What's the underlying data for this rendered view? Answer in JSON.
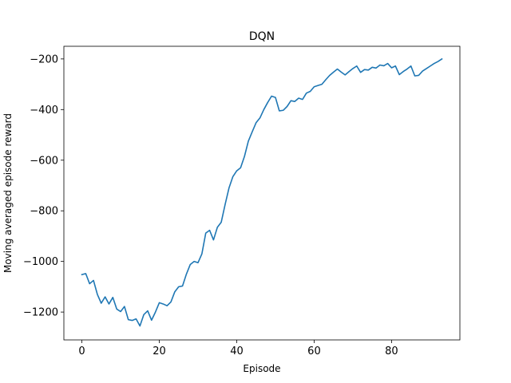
{
  "chart_data": {
    "type": "line",
    "title": "DQN",
    "xlabel": "Episode",
    "ylabel": "Moving averaged episode reward",
    "xlim": [
      -4.65,
      97.65
    ],
    "ylim": [
      -1310,
      -150
    ],
    "xticks": [
      0,
      20,
      40,
      60,
      80
    ],
    "yticks": [
      -1200,
      -1000,
      -800,
      -600,
      -400,
      -200
    ],
    "grid": false,
    "legend": "none",
    "series": [
      {
        "color": "#1f77b4",
        "x": [
          0,
          1,
          2,
          3,
          4,
          5,
          6,
          7,
          8,
          9,
          10,
          11,
          12,
          13,
          14,
          15,
          16,
          17,
          18,
          19,
          20,
          21,
          22,
          23,
          24,
          25,
          26,
          27,
          28,
          29,
          30,
          31,
          32,
          33,
          34,
          35,
          36,
          37,
          38,
          39,
          40,
          41,
          42,
          43,
          44,
          45,
          46,
          47,
          48,
          49,
          50,
          51,
          52,
          53,
          54,
          55,
          56,
          57,
          58,
          59,
          60,
          61,
          62,
          63,
          64,
          65,
          66,
          67,
          68,
          69,
          70,
          71,
          72,
          73,
          74,
          75,
          76,
          77,
          78,
          79,
          80,
          81,
          82,
          83,
          84,
          85,
          86,
          87,
          88,
          89,
          90,
          91,
          92,
          93
        ],
        "y": [
          -1052,
          -1048,
          -1088,
          -1075,
          -1130,
          -1165,
          -1140,
          -1168,
          -1142,
          -1188,
          -1198,
          -1178,
          -1230,
          -1233,
          -1227,
          -1255,
          -1210,
          -1195,
          -1232,
          -1200,
          -1163,
          -1168,
          -1175,
          -1160,
          -1120,
          -1100,
          -1097,
          -1050,
          -1012,
          -1000,
          -1005,
          -970,
          -888,
          -877,
          -915,
          -865,
          -845,
          -775,
          -710,
          -665,
          -642,
          -630,
          -585,
          -525,
          -488,
          -452,
          -433,
          -400,
          -372,
          -347,
          -352,
          -405,
          -403,
          -388,
          -365,
          -368,
          -355,
          -360,
          -335,
          -328,
          -310,
          -305,
          -300,
          -282,
          -265,
          -252,
          -240,
          -252,
          -263,
          -250,
          -238,
          -228,
          -253,
          -242,
          -244,
          -233,
          -236,
          -224,
          -227,
          -218,
          -235,
          -228,
          -262,
          -250,
          -240,
          -228,
          -267,
          -265,
          -248,
          -238,
          -228,
          -218,
          -210,
          -200
        ]
      }
    ]
  }
}
